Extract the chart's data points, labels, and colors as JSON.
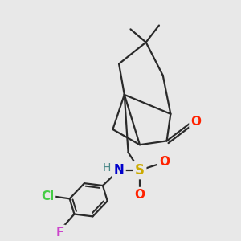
{
  "background_color": "#e8e8e8",
  "bond_color": "#2a2a2a",
  "line_width": 1.6,
  "colors": {
    "O": "#ff2200",
    "S": "#ccaa00",
    "N": "#0000cc",
    "H": "#4a8888",
    "Cl": "#44cc44",
    "F": "#cc44cc"
  }
}
